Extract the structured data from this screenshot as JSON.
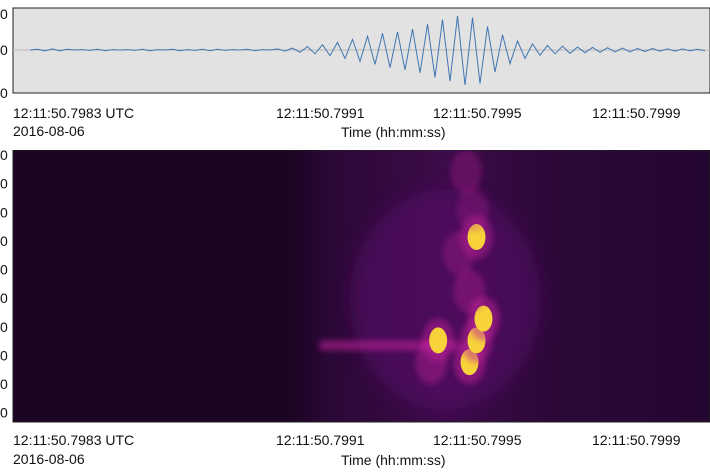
{
  "chart_data": [
    {
      "type": "line",
      "title": "",
      "xlabel": "Time (hh:mm:ss)",
      "date_label": "2016-08-06",
      "start_label": "12:11:50.7983 UTC",
      "x_ticks": [
        "12:11:50.7991",
        "12:11:50.7995",
        "12:11:50.7999"
      ],
      "y_ticks": [
        "0",
        "0",
        "0"
      ],
      "grid": false,
      "series": [
        {
          "values": [
            0,
            0.02,
            -0.02,
            0.03,
            -0.02,
            0.02,
            0,
            0.01,
            -0.01,
            0.02,
            -0.02,
            0.01,
            0,
            0.01,
            -0.01,
            0.02,
            -0.02,
            0.01,
            0,
            0.02,
            -0.02,
            0.01,
            -0.01,
            0.02,
            -0.02,
            0.02,
            -0.01,
            0.01,
            0,
            0.02,
            -0.02,
            0.01,
            0,
            0.03,
            -0.03,
            0.05,
            -0.06,
            0.09,
            -0.1,
            0.14,
            -0.15,
            0.2,
            -0.22,
            0.28,
            -0.3,
            0.36,
            -0.38,
            0.44,
            -0.46,
            0.48,
            -0.52,
            0.55,
            -0.6,
            0.68,
            -0.72,
            0.8,
            -0.82,
            0.9,
            -0.92,
            0.85,
            -0.88,
            0.62,
            -0.58,
            0.4,
            -0.36,
            0.24,
            -0.22,
            0.16,
            -0.14,
            0.12,
            -0.1,
            0.1,
            -0.09,
            0.08,
            -0.07,
            0.07,
            -0.06,
            0.06,
            -0.05,
            0.05,
            -0.05,
            0.04,
            -0.04,
            0.04,
            -0.03,
            0.03,
            -0.03,
            0.03,
            -0.02,
            0.02,
            -0.02
          ]
        }
      ],
      "line_color": "#3f76b2",
      "plot_bg": "#e2e2e2"
    },
    {
      "type": "heatmap",
      "title": "",
      "xlabel": "Time (hh:mm:ss)",
      "date_label": "2016-08-06",
      "start_label": "12:11:50.7983 UTC",
      "x_ticks": [
        "12:11:50.7991",
        "12:11:50.7995",
        "12:11:50.7999"
      ],
      "y_ticks": [
        "0",
        "0",
        "0",
        "0",
        "0",
        "0",
        "0",
        "0",
        "0",
        "0"
      ],
      "colormap": "inferno",
      "colors": {
        "background": "#1c0423",
        "mid": "#5a0e6a",
        "hot": "#c2229a",
        "peak": "#f7d23a"
      },
      "track": [
        {
          "t": 0.655,
          "f": 0.22,
          "level": 1.0
        },
        {
          "t": 0.665,
          "f": 0.3,
          "level": 1.0
        },
        {
          "t": 0.675,
          "f": 0.38,
          "level": 1.0
        },
        {
          "t": 0.655,
          "f": 0.48,
          "level": 0.7
        },
        {
          "t": 0.6,
          "f": 0.22,
          "level": 0.8
        },
        {
          "t": 0.61,
          "f": 0.3,
          "level": 0.9
        },
        {
          "t": 0.64,
          "f": 0.62,
          "level": 0.6
        },
        {
          "t": 0.665,
          "f": 0.68,
          "level": 0.9
        },
        {
          "t": 0.66,
          "f": 0.78,
          "level": 0.5
        },
        {
          "t": 0.65,
          "f": 0.92,
          "level": 0.6
        }
      ]
    }
  ]
}
